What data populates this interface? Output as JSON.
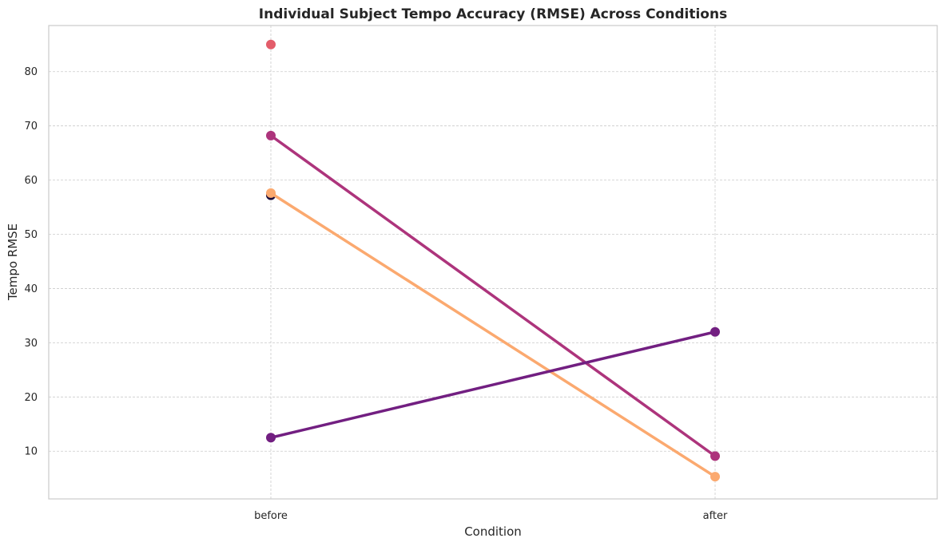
{
  "chart_data": {
    "type": "line",
    "title": "Individual Subject Tempo Accuracy (RMSE) Across Conditions",
    "xlabel": "Condition",
    "ylabel": "Tempo RMSE",
    "categories": [
      "before",
      "after"
    ],
    "ylim": [
      1.2,
      88.5
    ],
    "yticks": [
      10,
      20,
      30,
      40,
      50,
      60,
      70,
      80
    ],
    "grid": true,
    "series": [
      {
        "color": "#e35d6a",
        "values": [
          85.0,
          null
        ]
      },
      {
        "color": "#ad347c",
        "values": [
          68.2,
          9.1
        ]
      },
      {
        "color": "#1a0d3b",
        "values": [
          57.2,
          null
        ]
      },
      {
        "color": "#fba96f",
        "values": [
          57.6,
          5.3
        ]
      },
      {
        "color": "#721f81",
        "values": [
          12.5,
          32.0
        ]
      }
    ]
  }
}
